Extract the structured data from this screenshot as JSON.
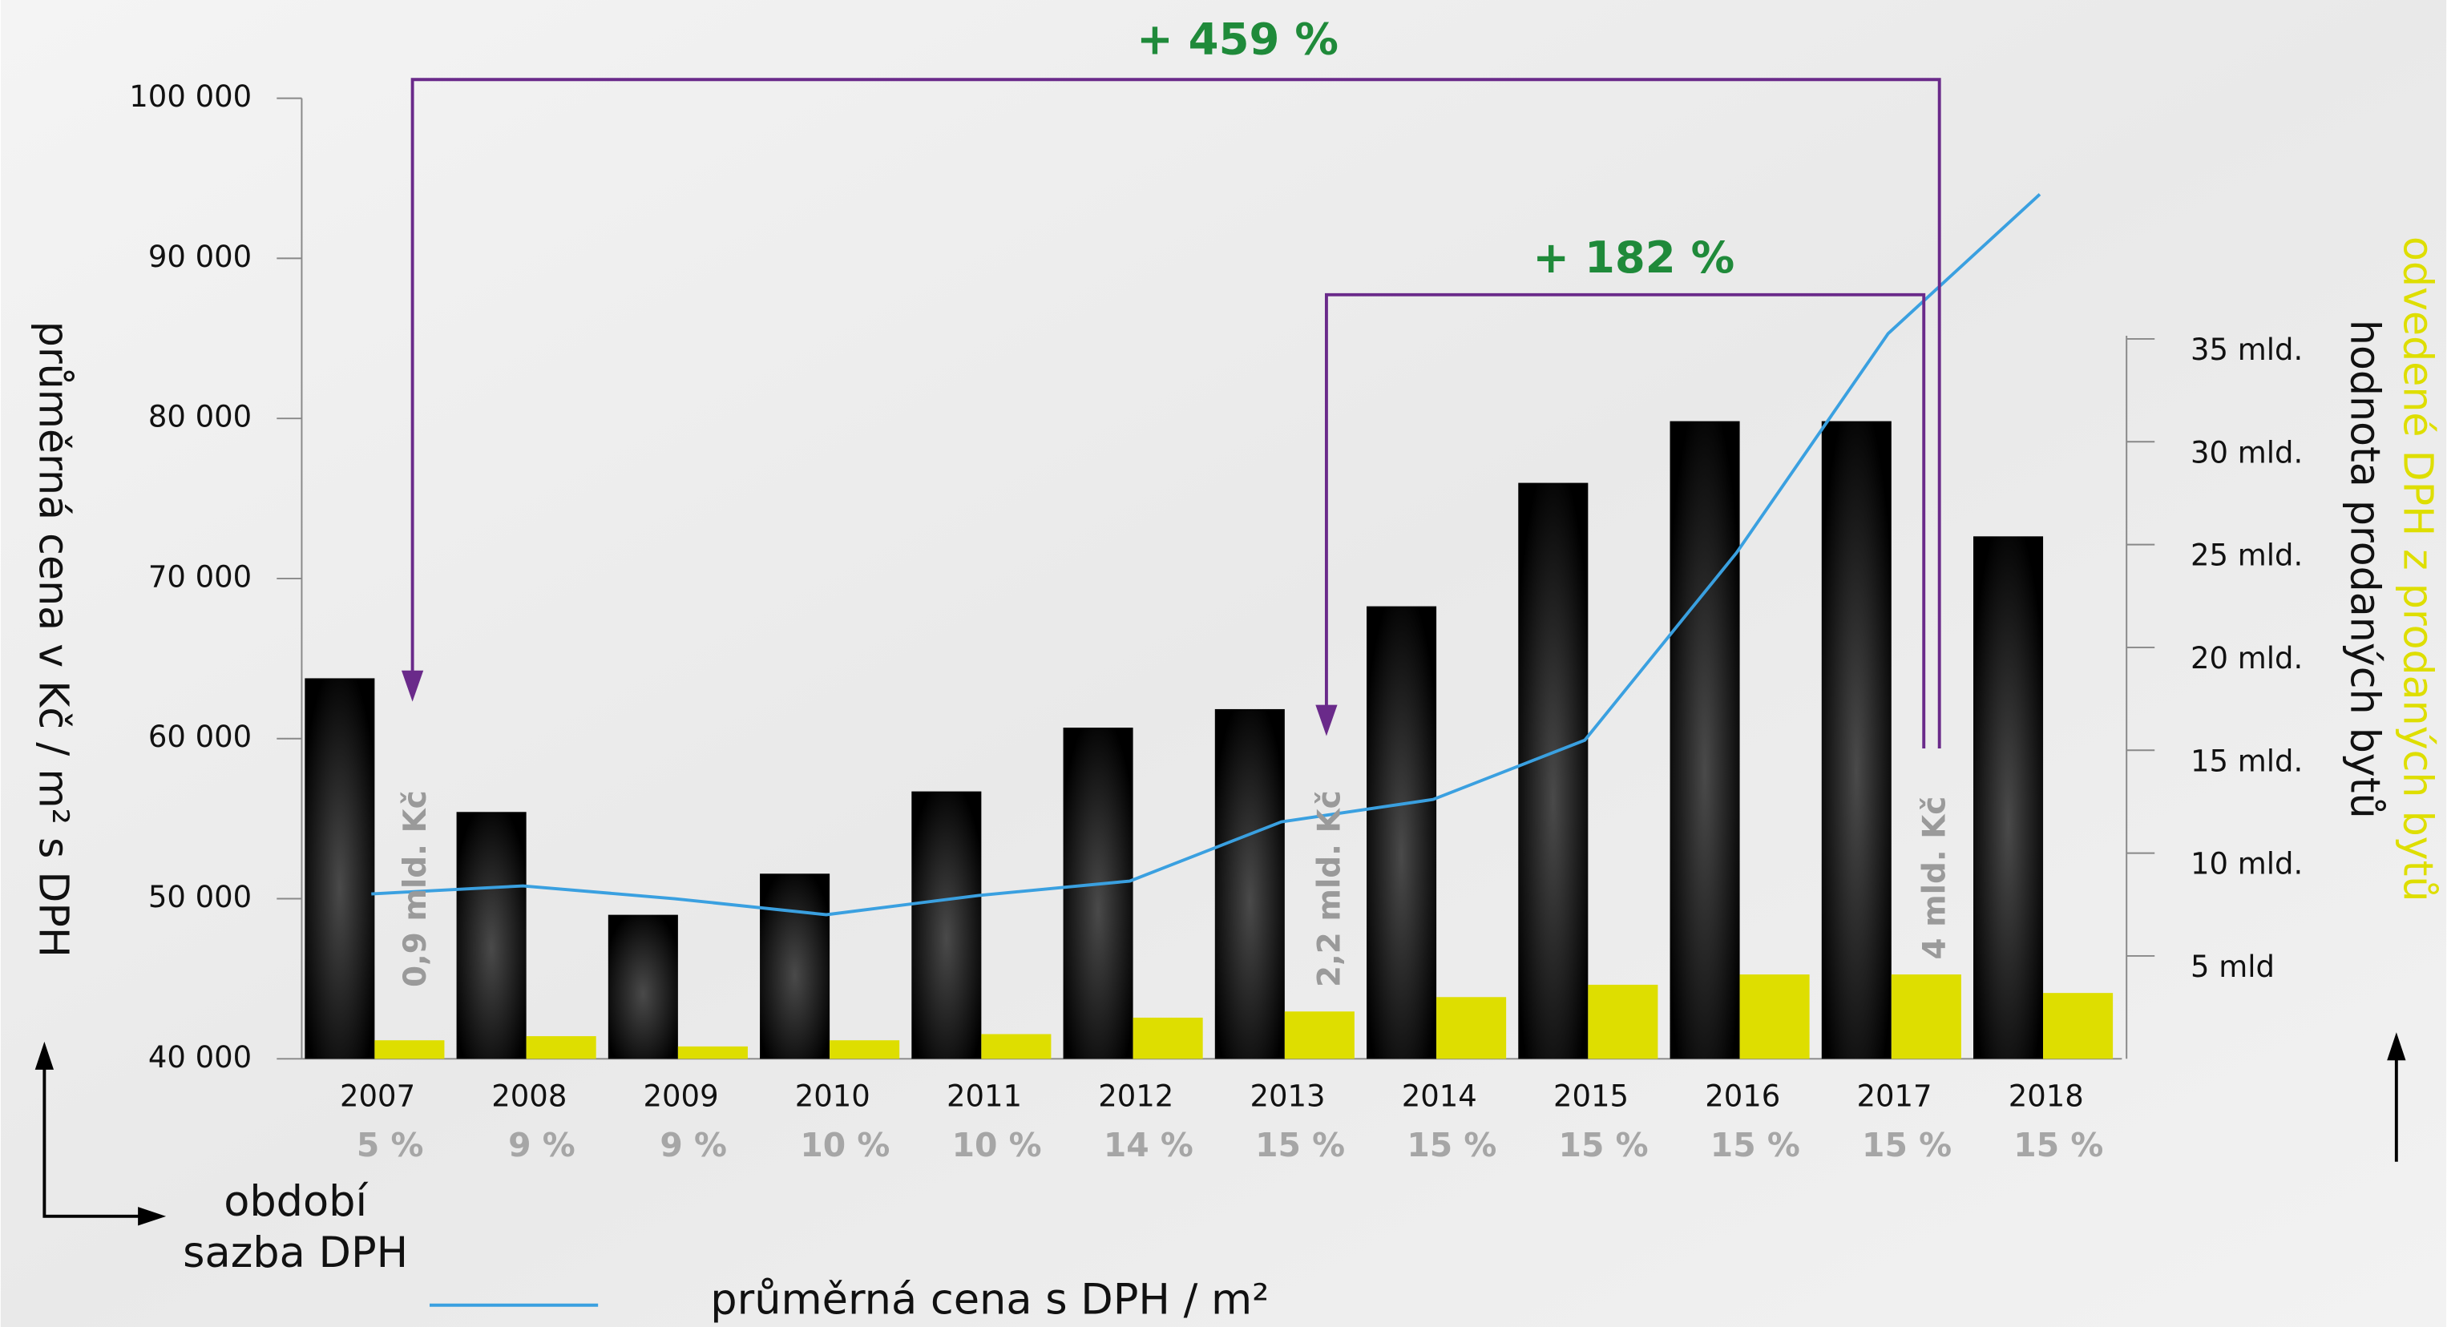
{
  "chart_data": {
    "type": "bar",
    "categories": [
      "2007",
      "2008",
      "2009",
      "2010",
      "2011",
      "2012",
      "2013",
      "2014",
      "2015",
      "2016",
      "2017",
      "2018"
    ],
    "vat_rates": [
      "5 %",
      "9 %",
      "9 %",
      "10 %",
      "10 %",
      "14 %",
      "15 %",
      "15 %",
      "15 %",
      "15 %",
      "15 %",
      "15 %"
    ],
    "series": [
      {
        "name": "hodnota prodaných bytů",
        "type": "bar",
        "axis": "y2",
        "color": "#000000",
        "values": [
          18.5,
          12.0,
          7.0,
          9.0,
          13.0,
          16.1,
          17.0,
          22.0,
          28.0,
          31.0,
          31.0,
          25.4
        ]
      },
      {
        "name": "odvedené DPH z prodaných bytů",
        "type": "bar",
        "axis": "y2",
        "color": "#dede00",
        "values": [
          0.9,
          1.1,
          0.6,
          0.9,
          1.2,
          2.0,
          2.3,
          3.0,
          3.6,
          4.1,
          4.1,
          3.2
        ]
      },
      {
        "name": "průměrná cena s DPH / m²",
        "type": "line",
        "color": "#3aa0e0",
        "values": [
          50300,
          50800,
          50000,
          49000,
          50200,
          51100,
          54800,
          56200,
          59900,
          71600,
          85300,
          94000
        ]
      }
    ],
    "y_label": "průměrná cena v Kč / m² s DPH",
    "x_label": "období",
    "x_label_2": "sazba DPH",
    "ylim": [
      40000,
      100000
    ],
    "yticks": [
      {
        "value": 40000,
        "label": "40 000"
      },
      {
        "value": 50000,
        "label": "50 000"
      },
      {
        "value": 60000,
        "label": "60 000"
      },
      {
        "value": 70000,
        "label": "70 000"
      },
      {
        "value": 80000,
        "label": "80 000"
      },
      {
        "value": 90000,
        "label": "90 000"
      },
      {
        "value": 100000,
        "label": "100 000"
      }
    ],
    "y2lim": [
      0,
      46.7
    ],
    "y2ticks": [
      {
        "value": 5,
        "label": "5 mld"
      },
      {
        "value": 10,
        "label": "10 mld."
      },
      {
        "value": 15,
        "label": "15 mld."
      },
      {
        "value": 20,
        "label": "20 mld."
      },
      {
        "value": 25,
        "label": "25 mld."
      },
      {
        "value": 30,
        "label": "30 mld."
      },
      {
        "value": 35,
        "label": "35 mld."
      }
    ],
    "annotations": [
      "+ 459 %",
      "+ 182 %",
      "0,9 mld. Kč",
      "2,2 mld. Kč",
      "4 mld. Kč"
    ]
  }
}
